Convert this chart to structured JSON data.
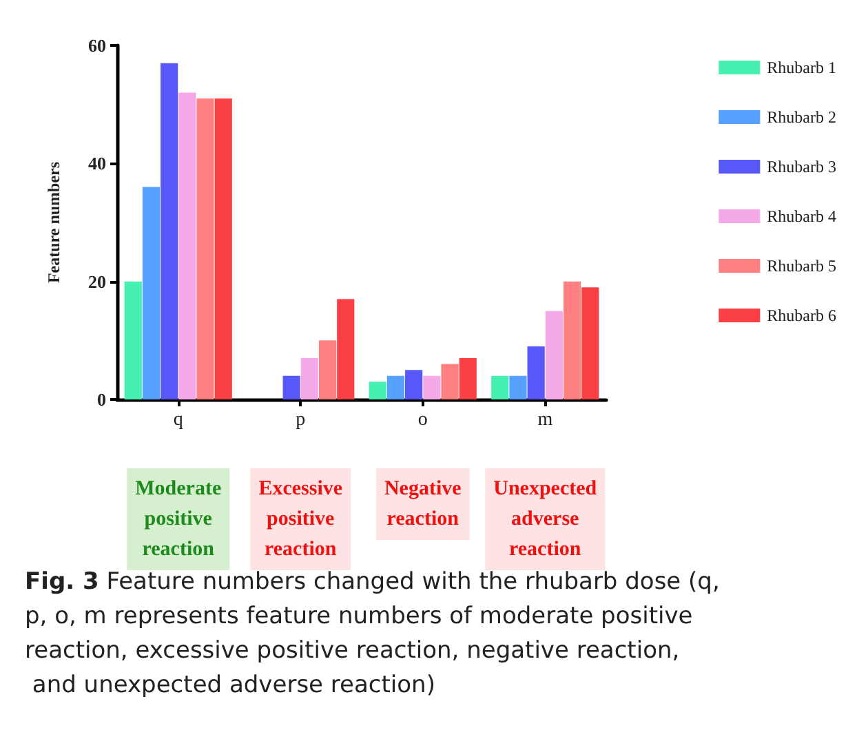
{
  "chart_data": {
    "type": "bar",
    "ylabel": "Feature numbers",
    "categories": [
      "q",
      "p",
      "o",
      "m"
    ],
    "series": [
      {
        "name": "Rhubarb 1",
        "color": "#45f0b0",
        "values": [
          20,
          0,
          3,
          4
        ]
      },
      {
        "name": "Rhubarb 2",
        "color": "#56a0ff",
        "values": [
          36,
          0,
          4,
          4
        ]
      },
      {
        "name": "Rhubarb 3",
        "color": "#5858f8",
        "values": [
          57,
          4,
          5,
          9
        ]
      },
      {
        "name": "Rhubarb 4",
        "color": "#f4aae8",
        "values": [
          52,
          7,
          4,
          15
        ]
      },
      {
        "name": "Rhubarb 5",
        "color": "#ff8080",
        "values": [
          51,
          10,
          6,
          20
        ]
      },
      {
        "name": "Rhubarb 6",
        "color": "#fa4045",
        "values": [
          51,
          17,
          7,
          19
        ]
      }
    ],
    "ylim": [
      0,
      60
    ],
    "yticks": [
      0,
      20,
      40,
      60
    ],
    "grid": false,
    "legend": "top right",
    "annotations": [
      "Moderate\npositive\nreaction",
      "Excessive\npositive\nreaction",
      "Negative\nreaction",
      "Unexpected\nadverse\nreaction",
      "Fig. 3",
      "Feature numbers changed with the rhubarb dose (q, p, o, m represents feature numbers of moderate positive reaction, excessive positive reaction, negative reaction, and unexpected adverse reaction)"
    ]
  }
}
